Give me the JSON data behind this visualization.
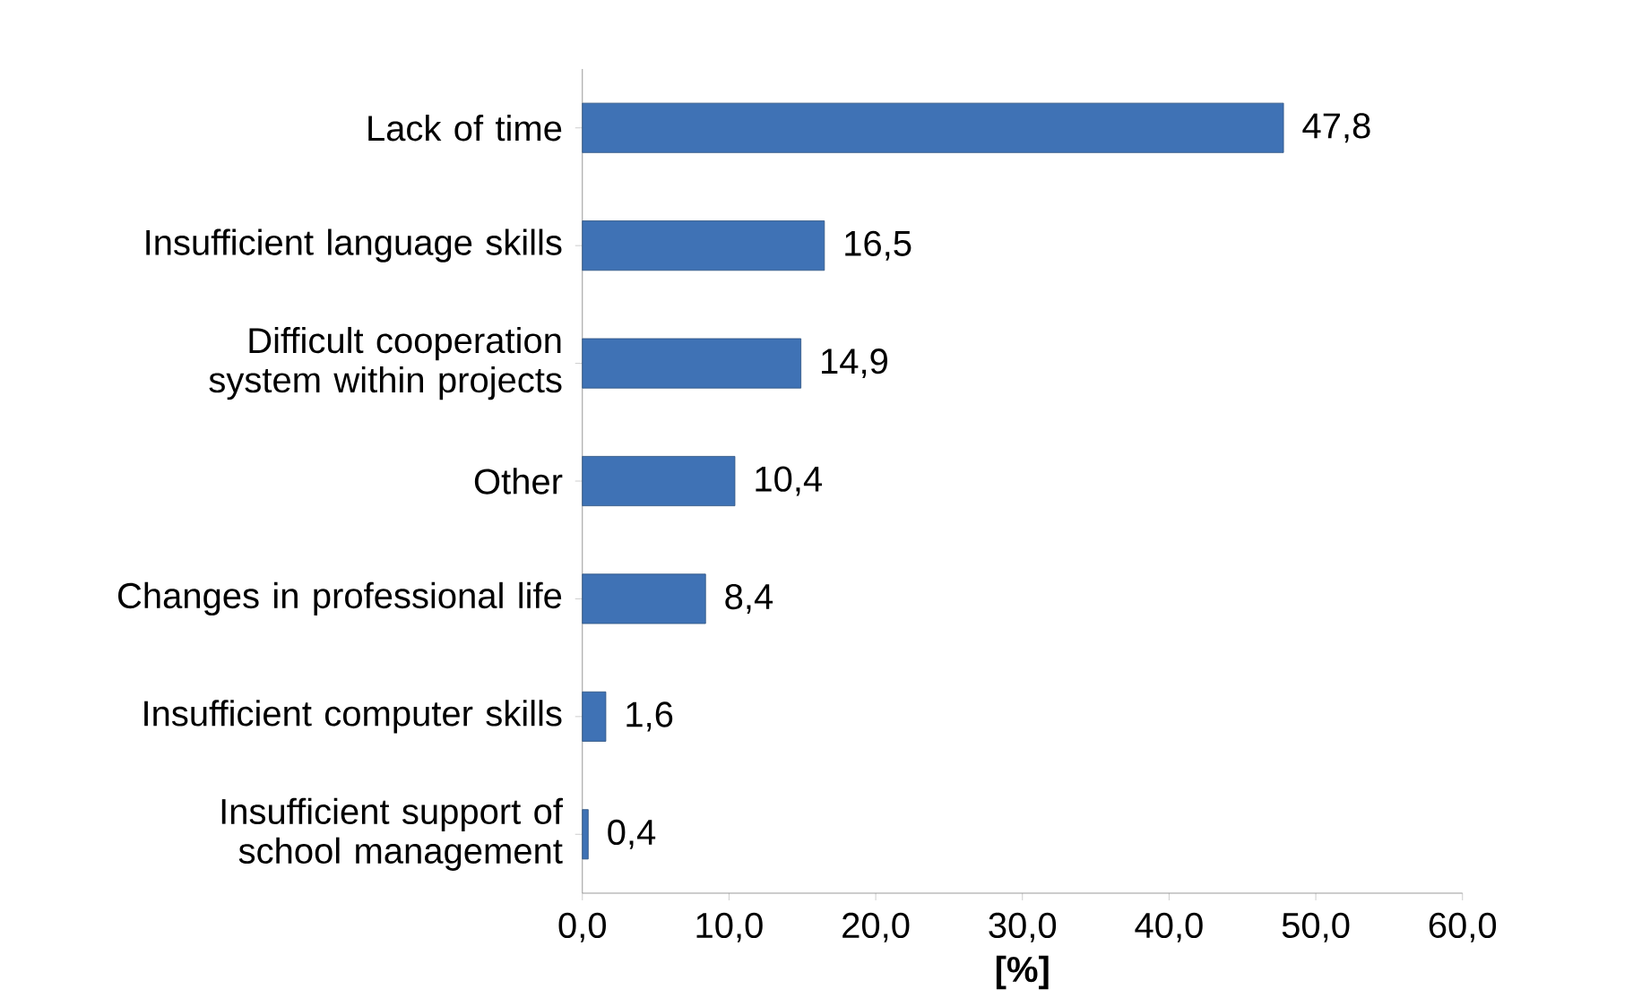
{
  "chart_data": {
    "type": "bar",
    "orientation": "horizontal",
    "xlabel": "**[%]**",
    "categories": [
      "Lack of time",
      "Insufficient language skills",
      "Difficult cooperation system within projects",
      "Other",
      "Changes in professional life",
      "Insufficient computer skills",
      "Insufficient support of school management"
    ],
    "values": [
      47.8,
      16.5,
      14.9,
      10.4,
      8.4,
      1.6,
      0.4
    ],
    "value_labels": [
      "47,8",
      "16,5",
      "14,9",
      "10,4",
      "8,4",
      "1,6",
      "0,4"
    ],
    "color": "#3f72b5",
    "xlim": [
      0,
      60
    ],
    "xticks": [
      {
        "value": 0,
        "label": "0,0"
      },
      {
        "value": 10,
        "label": "10,0"
      },
      {
        "value": 20,
        "label": "20,0"
      },
      {
        "value": 30,
        "label": "30,0"
      },
      {
        "value": 40,
        "label": "40,0"
      },
      {
        "value": 50,
        "label": "50,0"
      },
      {
        "value": 60,
        "label": "60,0"
      }
    ],
    "grid": false
  }
}
